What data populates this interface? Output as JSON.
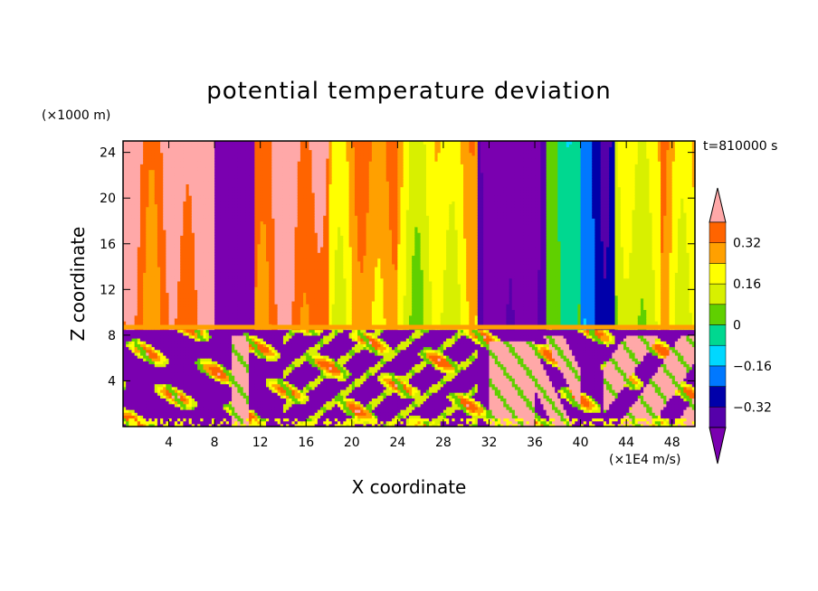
{
  "chart_data": {
    "type": "heatmap",
    "title": "potential temperature deviation",
    "xlabel": "X coordinate",
    "ylabel": "Z coordinate",
    "x_unit": "(×1E4 m/s)",
    "y_unit": "(×1000 m)",
    "time_label": "t=810000 s",
    "xlim": [
      0,
      50
    ],
    "ylim": [
      0,
      25
    ],
    "x_ticks": [
      4,
      8,
      12,
      16,
      20,
      24,
      28,
      32,
      36,
      40,
      44,
      48
    ],
    "y_ticks": [
      4,
      8,
      12,
      16,
      20,
      24
    ],
    "colorbar": {
      "levels": [
        -0.4,
        -0.32,
        -0.24,
        -0.16,
        -0.08,
        0,
        0.08,
        0.16,
        0.24,
        0.32,
        0.4
      ],
      "tick_labels": [
        "0.32",
        "0.16",
        "0",
        "−0.16",
        "−0.32"
      ],
      "tick_values": [
        0.32,
        0.16,
        0,
        -0.16,
        -0.32
      ],
      "colors": [
        "#7a00b0",
        "#5500aa",
        "#0000aa",
        "#0078ff",
        "#00d8ff",
        "#00d890",
        "#60d000",
        "#d8f000",
        "#ffff00",
        "#ffa000",
        "#ff6400",
        "#ff2020",
        "#ffa8a8"
      ],
      "extend": "both"
    },
    "interface_z": 8.5,
    "upper_layer_columns": [
      {
        "x": [
          0,
          8
        ],
        "value": 0.36
      },
      {
        "x": [
          8,
          11.5
        ],
        "value": -0.45
      },
      {
        "x": [
          11.5,
          18
        ],
        "value": 0.34
      },
      {
        "x": [
          18,
          24
        ],
        "value": 0.22
      },
      {
        "x": [
          24,
          31
        ],
        "value": 0.14
      },
      {
        "x": [
          31,
          37
        ],
        "value": -0.4
      },
      {
        "x": [
          37,
          40
        ],
        "value": -0.02
      },
      {
        "x": [
          40,
          43
        ],
        "value": -0.2
      },
      {
        "x": [
          43,
          47
        ],
        "value": 0.08
      },
      {
        "x": [
          47,
          50
        ],
        "value": 0.2
      }
    ],
    "lower_layer_notes": "mostly -0.4 with mixed bands; large positive (>0.4) region x=32-40 and x=42-50"
  }
}
